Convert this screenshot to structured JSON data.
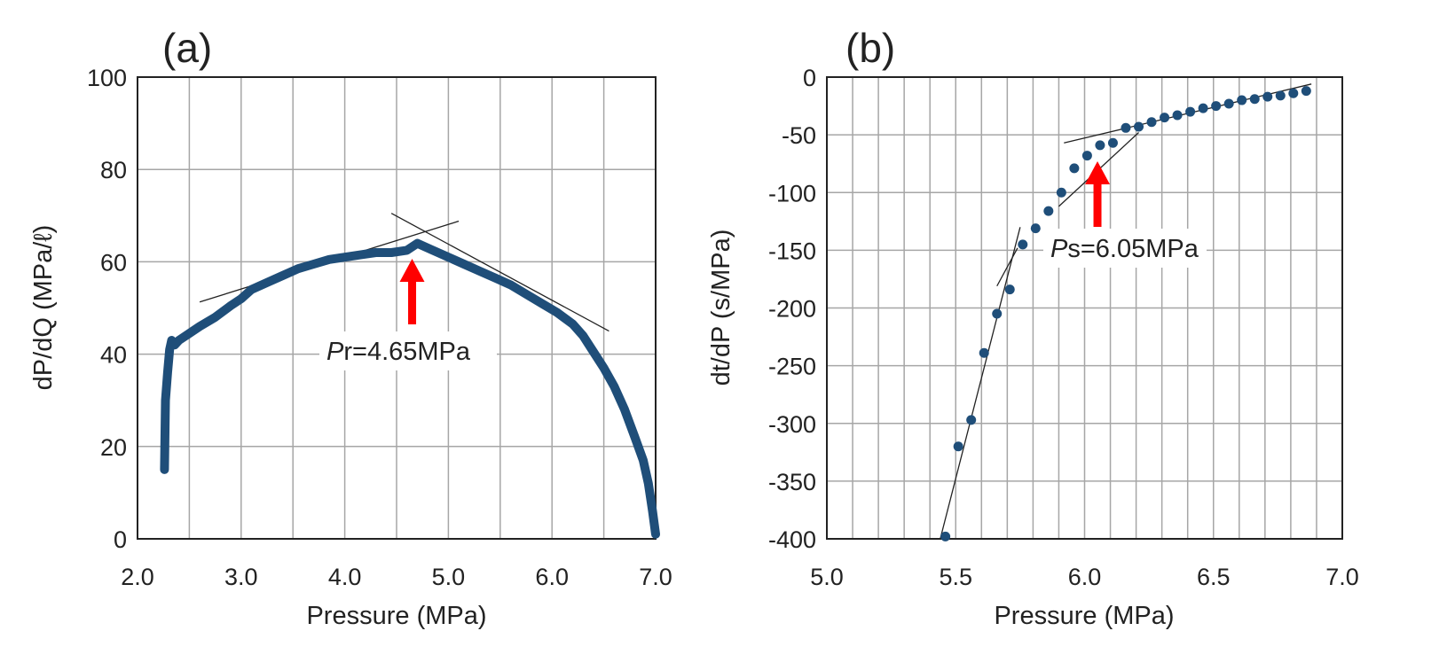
{
  "colors": {
    "series": "#1f4e79",
    "arrow": "#ff0000",
    "grid": "#a6a6a6",
    "fit": "#222222"
  },
  "chart_data": [
    {
      "panel": "(a)",
      "type": "line",
      "xlabel": "Pressure (MPa)",
      "ylabel": "dP/dQ (MPa/ℓ)",
      "xlim": [
        2.0,
        7.0
      ],
      "ylim": [
        0,
        100
      ],
      "x_gridlines": [
        2.0,
        2.5,
        3.0,
        3.5,
        4.0,
        4.5,
        5.0,
        5.5,
        6.0,
        6.5,
        7.0
      ],
      "y_gridlines": [
        0,
        20,
        40,
        60,
        80,
        100
      ],
      "xticks": [
        {
          "v": 2.0,
          "label": "2.0"
        },
        {
          "v": 3.0,
          "label": "3.0"
        },
        {
          "v": 4.0,
          "label": "4.0"
        },
        {
          "v": 5.0,
          "label": "5.0"
        },
        {
          "v": 6.0,
          "label": "6.0"
        },
        {
          "v": 7.0,
          "label": "7.0"
        }
      ],
      "yticks": [
        {
          "v": 0,
          "label": "0"
        },
        {
          "v": 20,
          "label": "20"
        },
        {
          "v": 40,
          "label": "40"
        },
        {
          "v": 60,
          "label": "60"
        },
        {
          "v": 80,
          "label": "80"
        },
        {
          "v": 100,
          "label": "100"
        }
      ],
      "series": [
        {
          "name": "dP/dQ",
          "x": [
            2.26,
            2.27,
            2.29,
            2.31,
            2.33,
            2.36,
            2.4,
            2.5,
            2.6,
            2.75,
            2.9,
            3.0,
            3.1,
            3.25,
            3.4,
            3.55,
            3.7,
            3.85,
            4.0,
            4.15,
            4.3,
            4.45,
            4.6,
            4.7,
            4.75,
            4.85,
            5.0,
            5.15,
            5.3,
            5.45,
            5.6,
            5.75,
            5.9,
            6.05,
            6.2,
            6.3,
            6.4,
            6.5,
            6.6,
            6.7,
            6.8,
            6.88,
            6.93,
            6.97,
            7.0
          ],
          "y": [
            15,
            30,
            36,
            41,
            43,
            42,
            43,
            44.5,
            46,
            48,
            50.5,
            52,
            54,
            55.5,
            57,
            58.5,
            59.5,
            60.5,
            61,
            61.5,
            62,
            62,
            62.5,
            64,
            63.5,
            62.5,
            61,
            59.5,
            58,
            56.5,
            55,
            53,
            51,
            49,
            46.5,
            44,
            40.5,
            37,
            33,
            28,
            22,
            17,
            12,
            6,
            1
          ]
        }
      ],
      "fit_lines": [
        {
          "x": [
            2.6,
            5.1
          ],
          "y": [
            51.3,
            68.8
          ]
        },
        {
          "x": [
            4.45,
            6.55
          ],
          "y": [
            70.5,
            45
          ]
        }
      ],
      "annotations": [
        {
          "text_italic": "P",
          "text_sub": "r",
          "text": "=4.65MPa",
          "arrow_x": 4.65
        }
      ]
    },
    {
      "panel": "(b)",
      "type": "scatter",
      "xlabel": "Pressure (MPa)",
      "ylabel": "dt/dP (s/MPa)",
      "xlim": [
        5.0,
        7.0
      ],
      "ylim": [
        -400,
        0
      ],
      "x_gridlines": [
        5.0,
        5.1,
        5.2,
        5.3,
        5.4,
        5.5,
        5.6,
        5.7,
        5.8,
        5.9,
        6.0,
        6.1,
        6.2,
        6.3,
        6.4,
        6.5,
        6.6,
        6.7,
        6.8,
        6.9,
        7.0
      ],
      "y_gridlines": [
        0,
        -50,
        -100,
        -150,
        -200,
        -250,
        -300,
        -350,
        -400
      ],
      "xticks": [
        {
          "v": 5.0,
          "label": "5.0"
        },
        {
          "v": 5.5,
          "label": "5.5"
        },
        {
          "v": 6.0,
          "label": "6.0"
        },
        {
          "v": 6.5,
          "label": "6.5"
        },
        {
          "v": 7.0,
          "label": "7.0"
        }
      ],
      "yticks": [
        {
          "v": 0,
          "label": "0"
        },
        {
          "v": -50,
          "label": "-50"
        },
        {
          "v": -100,
          "label": "-100"
        },
        {
          "v": -150,
          "label": "-150"
        },
        {
          "v": -200,
          "label": "-200"
        },
        {
          "v": -250,
          "label": "-250"
        },
        {
          "v": -300,
          "label": "-300"
        },
        {
          "v": -350,
          "label": "-350"
        },
        {
          "v": -400,
          "label": "-400"
        }
      ],
      "series": [
        {
          "name": "dt/dP",
          "x": [
            5.46,
            5.51,
            5.56,
            5.61,
            5.66,
            5.71,
            5.76,
            5.81,
            5.86,
            5.91,
            5.96,
            6.01,
            6.06,
            6.11,
            6.16,
            6.21,
            6.26,
            6.31,
            6.36,
            6.41,
            6.46,
            6.51,
            6.56,
            6.61,
            6.66,
            6.71,
            6.76,
            6.81,
            6.86
          ],
          "y": [
            -398,
            -320,
            -297,
            -239,
            -205,
            -184,
            -145,
            -131,
            -116,
            -100,
            -79,
            -68,
            -59,
            -57,
            -44,
            -43,
            -39,
            -35,
            -33,
            -30,
            -27,
            -25,
            -23,
            -20,
            -19,
            -17,
            -16,
            -14,
            -12
          ]
        }
      ],
      "fit_lines": [
        {
          "x": [
            5.44,
            5.75
          ],
          "y": [
            -400,
            -130
          ]
        },
        {
          "x": [
            5.66,
            5.74
          ],
          "y": [
            -181,
            -148
          ]
        },
        {
          "x": [
            5.9,
            6.21
          ],
          "y": [
            -112,
            -48
          ]
        },
        {
          "x": [
            5.92,
            6.88
          ],
          "y": [
            -57,
            -6
          ]
        }
      ],
      "annotations": [
        {
          "text_italic": "P",
          "text_sub": "s",
          "text": "=6.05MPa",
          "arrow_x": 6.05
        }
      ]
    }
  ]
}
